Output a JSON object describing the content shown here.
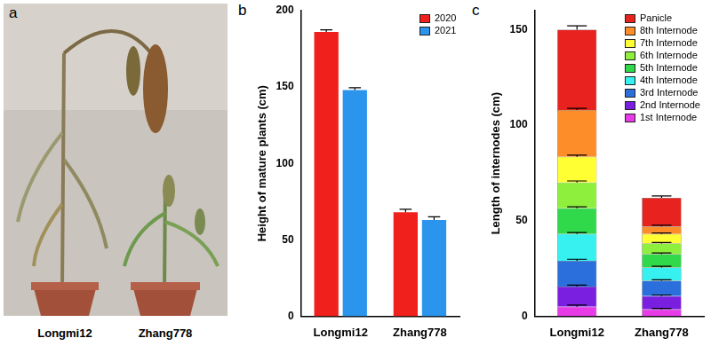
{
  "photo": {
    "title": "a",
    "captions": [
      "Longmi12",
      "Zhang778"
    ]
  },
  "chart_data": [
    {
      "type": "bar",
      "title": "b",
      "categories": [
        "Longmi12",
        "Zhang778"
      ],
      "y_label": "Height of mature plants (cm)",
      "series": [
        {
          "name": "2020",
          "color": "#f0201c",
          "values": [
            186,
            68
          ],
          "errors": [
            1.5,
            2
          ]
        },
        {
          "name": "2021",
          "color": "#2b95ee",
          "values": [
            148,
            63
          ],
          "errors": [
            1.5,
            2
          ]
        }
      ],
      "ylim": [
        0,
        200
      ],
      "yticks": [
        0,
        50,
        100,
        150,
        200
      ],
      "grid": false,
      "legend": "upper right"
    },
    {
      "type": "bar",
      "title": "c",
      "stacked": true,
      "categories": [
        "Longmi12",
        "Zhang778"
      ],
      "y_label": "Length of internodes (cm)",
      "series": [
        {
          "name": "1st Internode",
          "color": "#e83be8",
          "values": [
            5,
            3.5
          ],
          "errors": [
            0.8,
            0.6
          ]
        },
        {
          "name": "2nd Internode",
          "color": "#7a1fe0",
          "values": [
            10.5,
            7
          ],
          "errors": [
            0.8,
            0.6
          ]
        },
        {
          "name": "3rd Internode",
          "color": "#2a6fdc",
          "values": [
            13.5,
            8
          ],
          "errors": [
            0.8,
            0.6
          ]
        },
        {
          "name": "4th Internode",
          "color": "#37f0f0",
          "values": [
            14,
            7
          ],
          "errors": [
            0.8,
            0.6
          ]
        },
        {
          "name": "5th Internode",
          "color": "#2fd94a",
          "values": [
            13.5,
            7
          ],
          "errors": [
            0.8,
            0.6
          ]
        },
        {
          "name": "6th Internode",
          "color": "#8ef03c",
          "values": [
            13.5,
            5.5
          ],
          "errors": [
            0.8,
            0.6
          ]
        },
        {
          "name": "7th Internode",
          "color": "#ffff33",
          "values": [
            13.5,
            5
          ],
          "errors": [
            0.8,
            0.6
          ]
        },
        {
          "name": "8th Internode",
          "color": "#fd8d28",
          "values": [
            24.5,
            4
          ],
          "errors": [
            0.8,
            0.6
          ]
        },
        {
          "name": "Panicle",
          "color": "#e8221f",
          "values": [
            42,
            15
          ],
          "errors": [
            2,
            1
          ]
        }
      ],
      "ylim": [
        0,
        160
      ],
      "yticks": [
        0,
        50,
        100,
        150
      ],
      "grid": false,
      "legend": "upper right"
    }
  ]
}
